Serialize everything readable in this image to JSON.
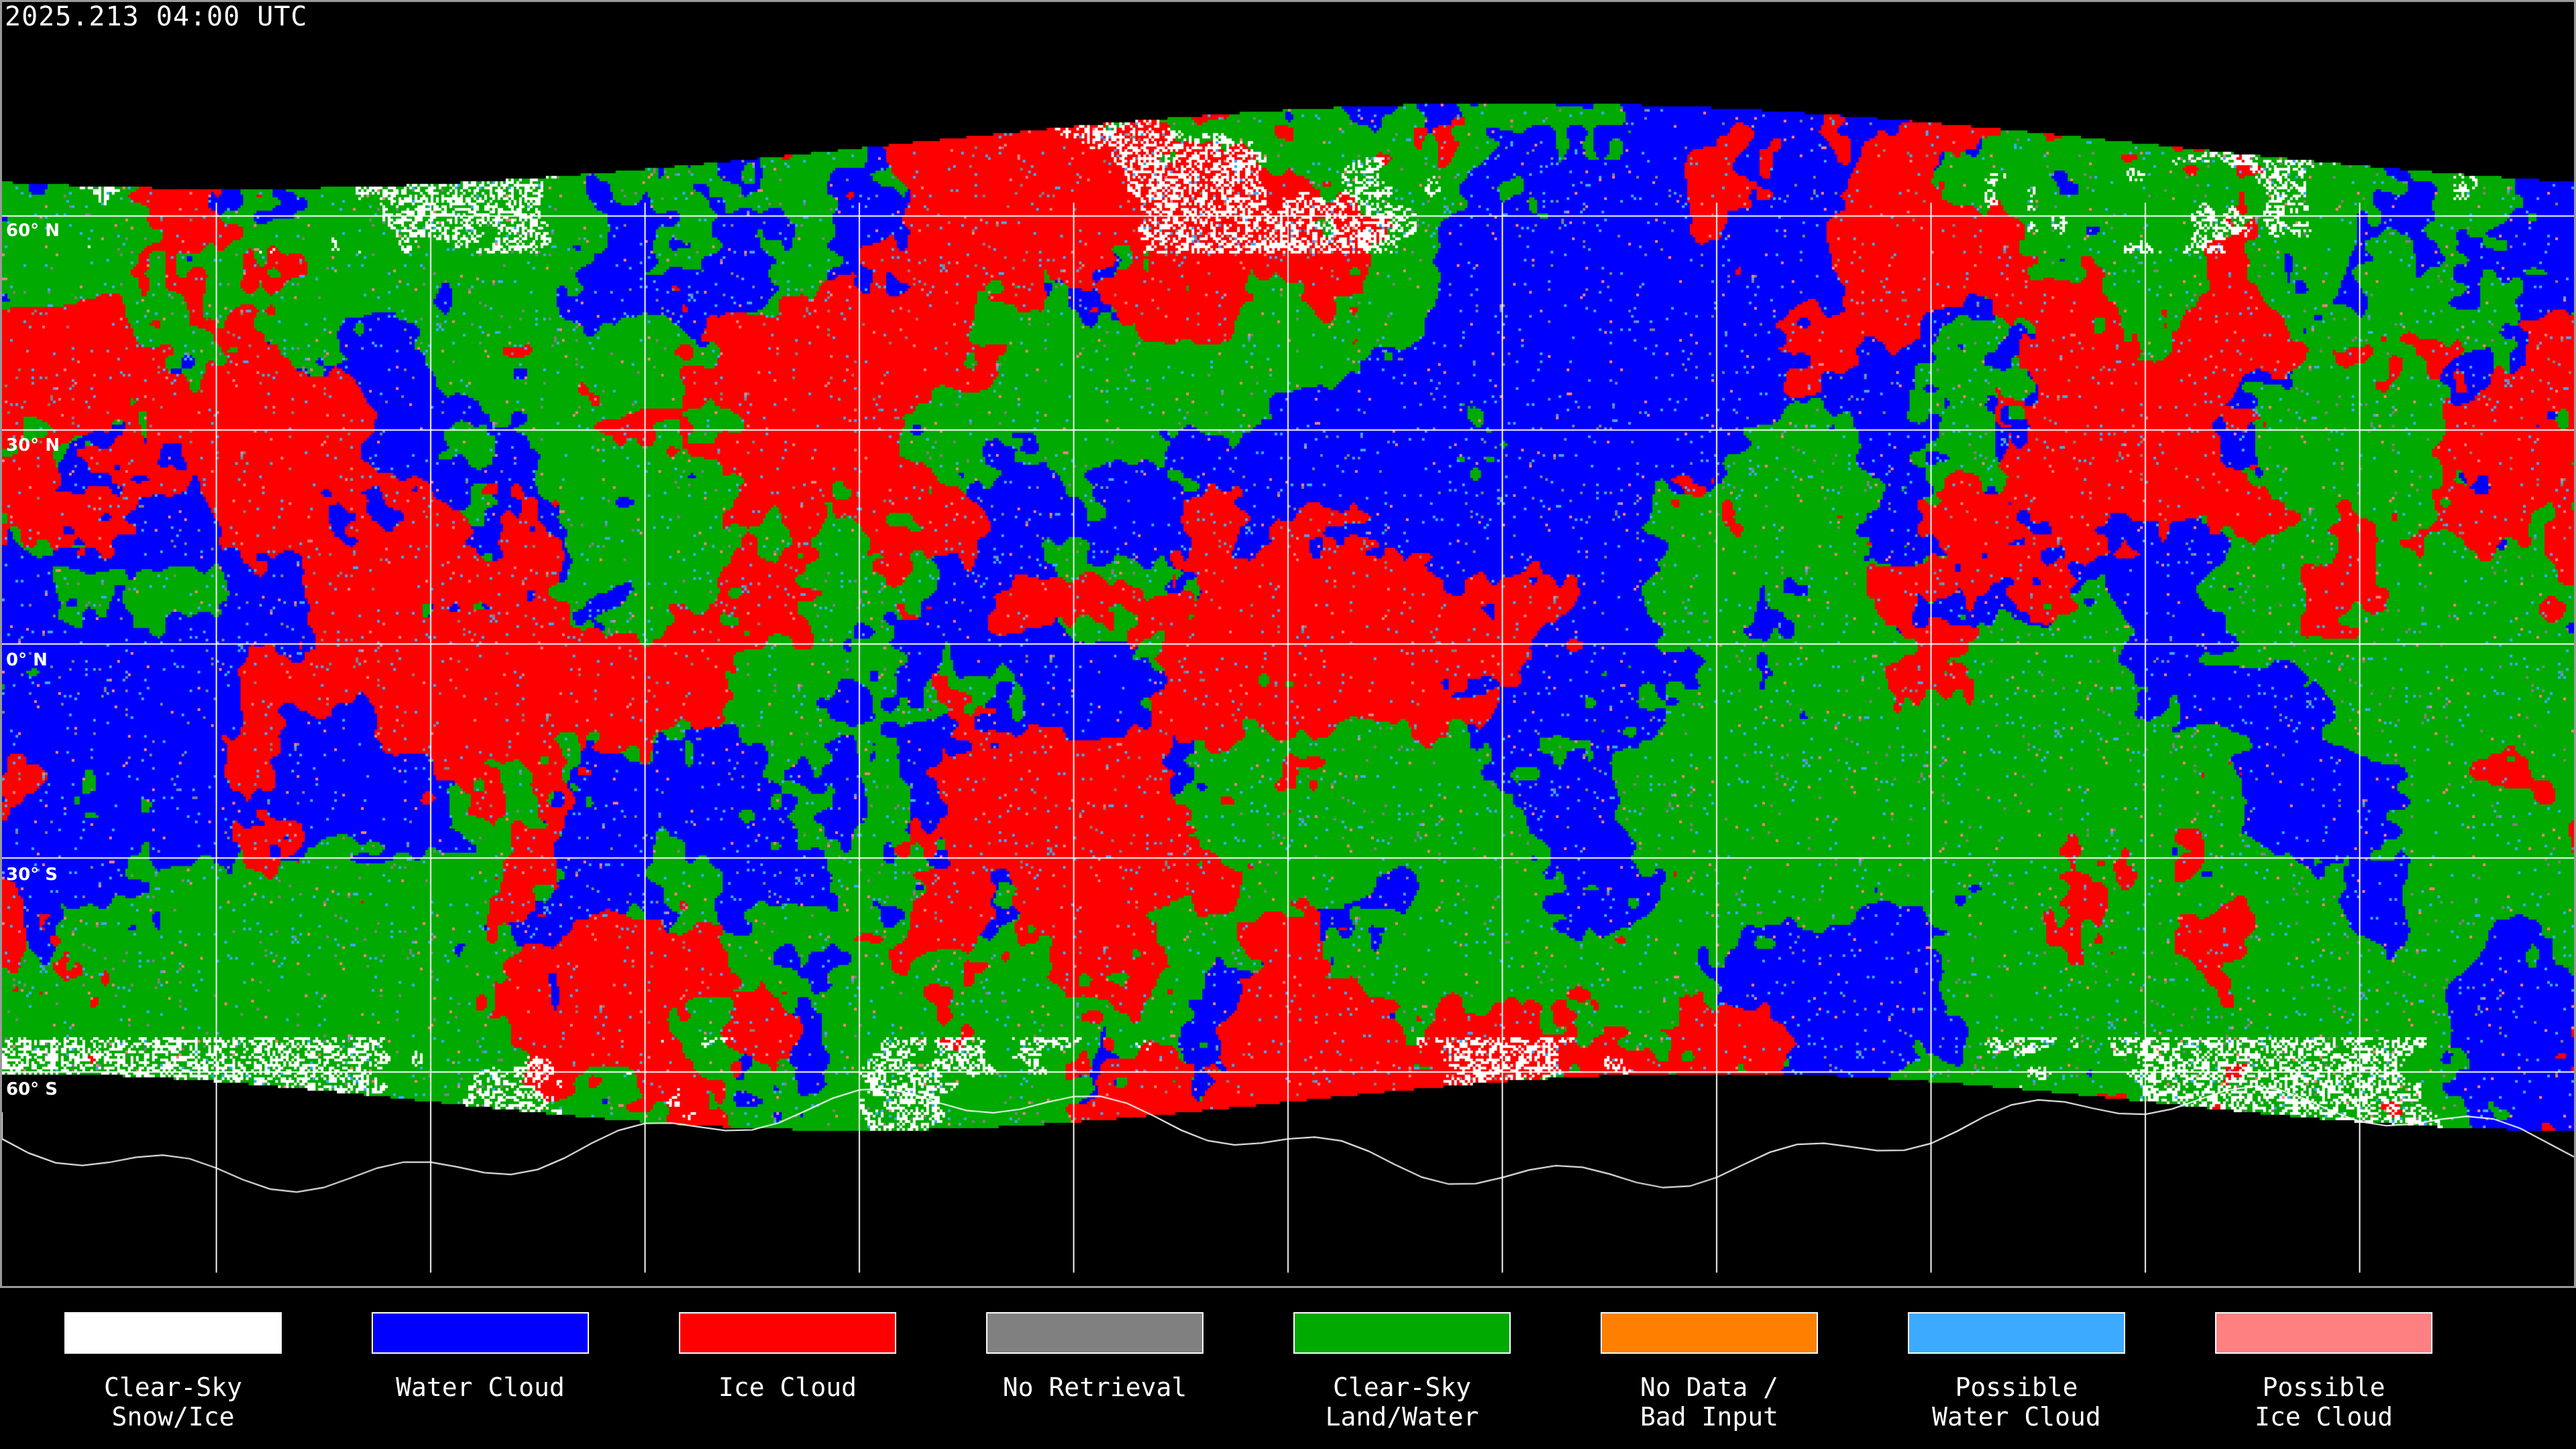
{
  "title": "2025.213 04:00 UTC",
  "map": {
    "latitude_labels": [
      "60° N",
      "30° N",
      "0° N",
      "30° S",
      "60° S"
    ],
    "gridline_spacing_deg": 30,
    "coastlines": true
  },
  "legend": [
    {
      "label": "Clear-Sky\nSnow/Ice",
      "color": "#ffffff"
    },
    {
      "label": "Water Cloud",
      "color": "#0000ff"
    },
    {
      "label": "Ice Cloud",
      "color": "#ff0000"
    },
    {
      "label": "No Retrieval",
      "color": "#808080"
    },
    {
      "label": "Clear-Sky\nLand/Water",
      "color": "#00aa00"
    },
    {
      "label": "No Data /\nBad Input",
      "color": "#ff8000"
    },
    {
      "label": "Possible\nWater Cloud",
      "color": "#3caaff"
    },
    {
      "label": "Possible\nIce Cloud",
      "color": "#ff8080"
    }
  ]
}
